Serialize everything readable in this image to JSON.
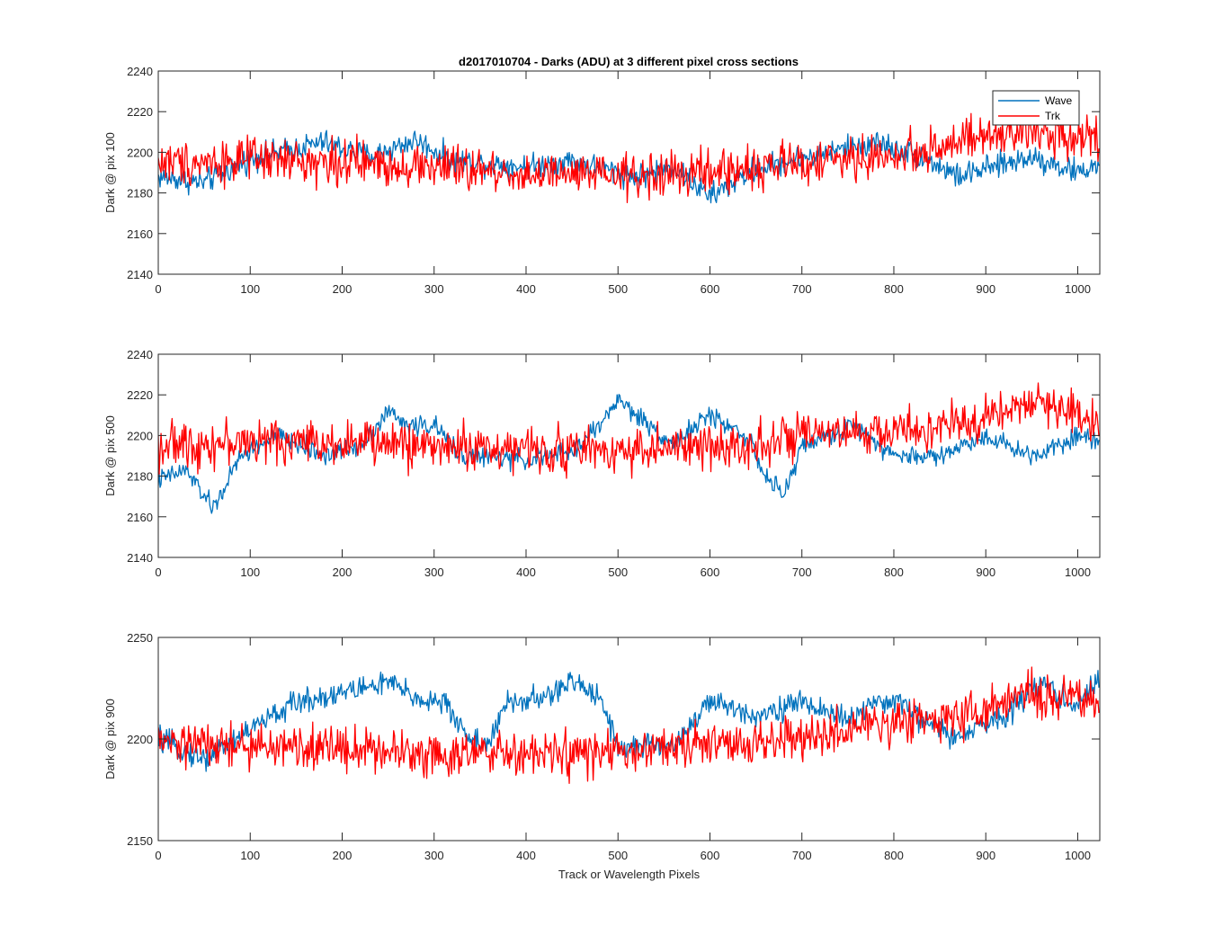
{
  "figure": {
    "title": "d2017010704 - Darks (ADU) at 3 different pixel cross sections"
  },
  "colors": {
    "wave": "#0072BD",
    "trk": "#FF0000",
    "axis": "#262626"
  },
  "chart_data": [
    {
      "type": "line",
      "title": "d2017010704 - Darks (ADU) at 3 different pixel cross sections",
      "xlabel": "",
      "ylabel": "Dark @ pix 100",
      "xlim": [
        0,
        1024
      ],
      "ylim": [
        2140,
        2240
      ],
      "xticks": [
        0,
        100,
        200,
        300,
        400,
        500,
        600,
        700,
        800,
        900,
        1000
      ],
      "yticks": [
        2140,
        2160,
        2180,
        2200,
        2220,
        2240
      ],
      "grid": false,
      "legend": {
        "placement": "top-right",
        "entries": [
          "Wave",
          "Trk"
        ]
      },
      "series": [
        {
          "name": "Wave",
          "color": "#0072BD",
          "n_points": 1024,
          "noise": 5,
          "trend": [
            [
              0,
              2188
            ],
            [
              50,
              2185
            ],
            [
              100,
              2197
            ],
            [
              180,
              2205
            ],
            [
              230,
              2198
            ],
            [
              280,
              2206
            ],
            [
              320,
              2196
            ],
            [
              400,
              2193
            ],
            [
              450,
              2196
            ],
            [
              520,
              2188
            ],
            [
              560,
              2193
            ],
            [
              600,
              2178
            ],
            [
              650,
              2192
            ],
            [
              700,
              2197
            ],
            [
              780,
              2205
            ],
            [
              830,
              2198
            ],
            [
              870,
              2188
            ],
            [
              950,
              2198
            ],
            [
              1000,
              2190
            ],
            [
              1024,
              2194
            ]
          ]
        },
        {
          "name": "Trk",
          "color": "#FF0000",
          "n_points": 1024,
          "noise": 9,
          "trend": [
            [
              0,
              2195
            ],
            [
              100,
              2196
            ],
            [
              200,
              2195
            ],
            [
              300,
              2193
            ],
            [
              400,
              2189
            ],
            [
              500,
              2188
            ],
            [
              600,
              2190
            ],
            [
              700,
              2195
            ],
            [
              800,
              2198
            ],
            [
              850,
              2203
            ],
            [
              900,
              2207
            ],
            [
              950,
              2210
            ],
            [
              1024,
              2208
            ]
          ]
        }
      ]
    },
    {
      "type": "line",
      "title": "",
      "xlabel": "",
      "ylabel": "Dark @ pix 500",
      "xlim": [
        0,
        1024
      ],
      "ylim": [
        2140,
        2240
      ],
      "xticks": [
        0,
        100,
        200,
        300,
        400,
        500,
        600,
        700,
        800,
        900,
        1000
      ],
      "yticks": [
        2140,
        2160,
        2180,
        2200,
        2220,
        2240
      ],
      "grid": false,
      "series": [
        {
          "name": "Wave",
          "color": "#0072BD",
          "n_points": 1024,
          "noise": 4,
          "trend": [
            [
              0,
              2178
            ],
            [
              30,
              2183
            ],
            [
              60,
              2164
            ],
            [
              90,
              2190
            ],
            [
              130,
              2200
            ],
            [
              180,
              2190
            ],
            [
              220,
              2195
            ],
            [
              250,
              2212
            ],
            [
              270,
              2205
            ],
            [
              300,
              2205
            ],
            [
              330,
              2190
            ],
            [
              400,
              2188
            ],
            [
              450,
              2192
            ],
            [
              480,
              2205
            ],
            [
              500,
              2218
            ],
            [
              520,
              2210
            ],
            [
              560,
              2196
            ],
            [
              600,
              2210
            ],
            [
              640,
              2200
            ],
            [
              660,
              2180
            ],
            [
              680,
              2170
            ],
            [
              700,
              2195
            ],
            [
              760,
              2205
            ],
            [
              800,
              2190
            ],
            [
              850,
              2190
            ],
            [
              900,
              2200
            ],
            [
              950,
              2190
            ],
            [
              1000,
              2200
            ],
            [
              1024,
              2198
            ]
          ]
        },
        {
          "name": "Trk",
          "color": "#FF0000",
          "n_points": 1024,
          "noise": 9,
          "trend": [
            [
              0,
              2195
            ],
            [
              100,
              2197
            ],
            [
              200,
              2197
            ],
            [
              300,
              2195
            ],
            [
              400,
              2193
            ],
            [
              500,
              2193
            ],
            [
              600,
              2194
            ],
            [
              700,
              2199
            ],
            [
              800,
              2202
            ],
            [
              880,
              2205
            ],
            [
              920,
              2214
            ],
            [
              960,
              2215
            ],
            [
              1000,
              2212
            ],
            [
              1024,
              2205
            ]
          ]
        }
      ]
    },
    {
      "type": "line",
      "title": "",
      "xlabel": "Track or Wavelength Pixels",
      "ylabel": "Dark @ pix 900",
      "xlim": [
        0,
        1024
      ],
      "ylim": [
        2150,
        2250
      ],
      "xticks": [
        0,
        100,
        200,
        300,
        400,
        500,
        600,
        700,
        800,
        900,
        1000
      ],
      "yticks": [
        2150,
        2200,
        2250
      ],
      "grid": false,
      "series": [
        {
          "name": "Wave",
          "color": "#0072BD",
          "n_points": 1024,
          "noise": 5,
          "trend": [
            [
              0,
              2200
            ],
            [
              50,
              2190
            ],
            [
              100,
              2205
            ],
            [
              150,
              2218
            ],
            [
              200,
              2223
            ],
            [
              250,
              2228
            ],
            [
              280,
              2220
            ],
            [
              310,
              2218
            ],
            [
              340,
              2200
            ],
            [
              360,
              2198
            ],
            [
              380,
              2218
            ],
            [
              420,
              2220
            ],
            [
              450,
              2228
            ],
            [
              480,
              2222
            ],
            [
              500,
              2196
            ],
            [
              560,
              2197
            ],
            [
              600,
              2218
            ],
            [
              650,
              2212
            ],
            [
              700,
              2218
            ],
            [
              750,
              2210
            ],
            [
              800,
              2220
            ],
            [
              830,
              2210
            ],
            [
              870,
              2200
            ],
            [
              920,
              2212
            ],
            [
              960,
              2228
            ],
            [
              1000,
              2215
            ],
            [
              1024,
              2232
            ]
          ]
        },
        {
          "name": "Trk",
          "color": "#FF0000",
          "n_points": 1024,
          "noise": 9,
          "trend": [
            [
              0,
              2198
            ],
            [
              100,
              2196
            ],
            [
              200,
              2196
            ],
            [
              300,
              2193
            ],
            [
              400,
              2192
            ],
            [
              500,
              2193
            ],
            [
              600,
              2197
            ],
            [
              700,
              2200
            ],
            [
              800,
              2208
            ],
            [
              900,
              2214
            ],
            [
              950,
              2222
            ],
            [
              1024,
              2218
            ]
          ]
        }
      ]
    }
  ]
}
